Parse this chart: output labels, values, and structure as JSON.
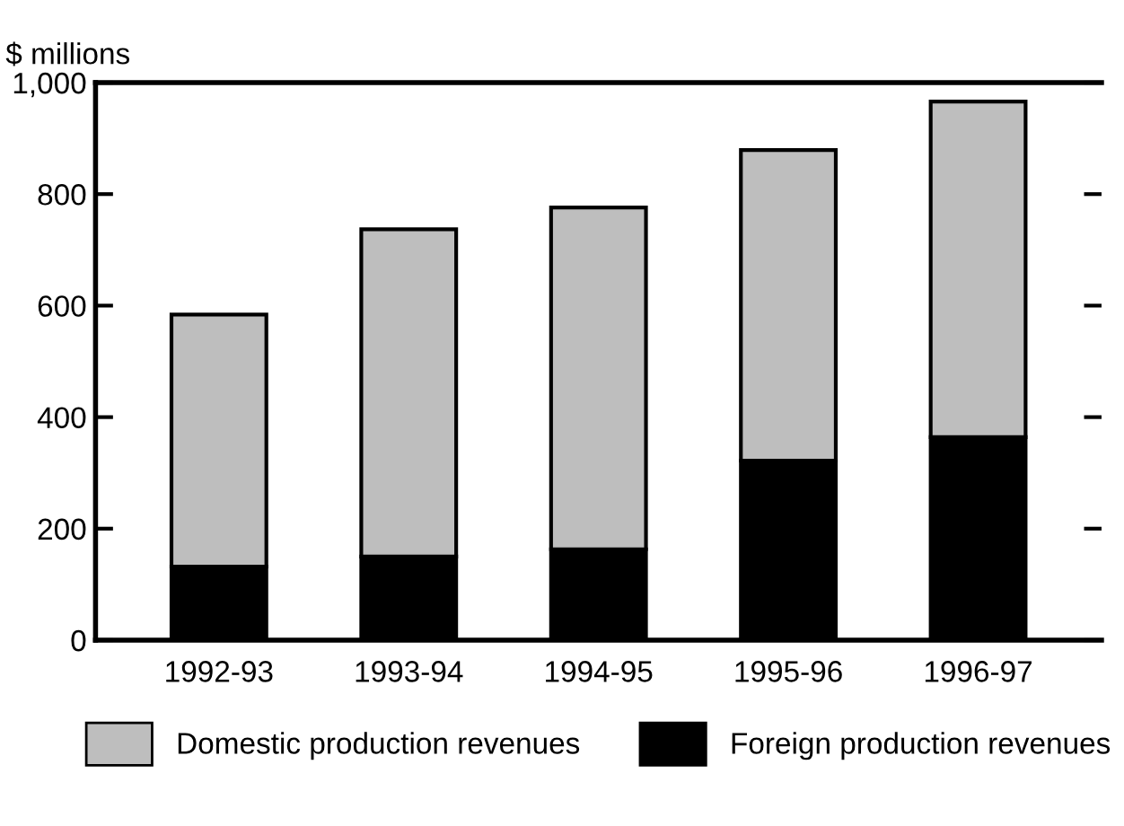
{
  "chart_data": {
    "type": "bar",
    "stacked": true,
    "ylabel": "$ millions",
    "categories": [
      "1992-93",
      "1993-94",
      "1994-95",
      "1995-96",
      "1996-97"
    ],
    "series": [
      {
        "name": "Foreign production revenues",
        "color": "#000000",
        "values": [
          132,
          150,
          163,
          322,
          364
        ]
      },
      {
        "name": "Domestic production revenues",
        "color": "#bebebe",
        "values": [
          452,
          587,
          613,
          557,
          602
        ]
      }
    ],
    "ylim": [
      0,
      1000
    ],
    "yticks": [
      0,
      200,
      400,
      600,
      800,
      {
        "value": 1000,
        "label": "1,000"
      }
    ],
    "grid": false,
    "legend": "bottom"
  }
}
